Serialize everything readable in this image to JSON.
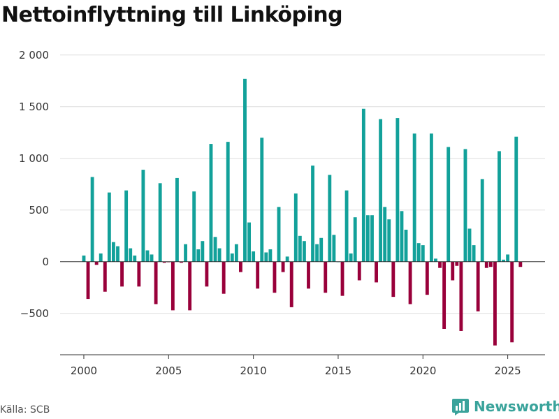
{
  "title": "Nettoinflyttning till Linköping",
  "source": "Källa: SCB",
  "brand": "Newsworthy",
  "colors": {
    "positive": "#12a19a",
    "negative": "#99003a",
    "grid": "#dddddd",
    "brand": "#3aa39b"
  },
  "chart_data": {
    "type": "bar",
    "title": "Nettoinflyttning till Linköping",
    "xlabel": "",
    "ylabel": "",
    "x_start": 2000.0,
    "x_step": 0.25,
    "bar_width_years": 0.2,
    "xlim": [
      1998.6,
      2027.2
    ],
    "ylim": [
      -900,
      2100
    ],
    "x_ticks": [
      2000,
      2005,
      2010,
      2015,
      2020,
      2025
    ],
    "x_tick_labels": [
      "2000",
      "2005",
      "2010",
      "2015",
      "2020",
      "2025"
    ],
    "y_ticks": [
      -500,
      0,
      500,
      1000,
      1500,
      2000
    ],
    "y_tick_labels": [
      "−500",
      "0",
      "500",
      "1 000",
      "1 500",
      "2 000"
    ],
    "values": [
      60,
      -360,
      820,
      -30,
      80,
      -290,
      670,
      190,
      150,
      -240,
      690,
      130,
      60,
      -240,
      890,
      110,
      70,
      -410,
      760,
      -10,
      -5,
      -470,
      810,
      -10,
      170,
      -470,
      680,
      120,
      200,
      -240,
      1140,
      240,
      130,
      -310,
      1160,
      80,
      170,
      -100,
      1770,
      380,
      100,
      -260,
      1200,
      90,
      120,
      -300,
      530,
      -100,
      50,
      -440,
      660,
      250,
      200,
      -260,
      930,
      170,
      230,
      -300,
      840,
      260,
      0,
      -330,
      690,
      80,
      430,
      -180,
      1480,
      450,
      450,
      -200,
      1380,
      530,
      410,
      -340,
      1390,
      490,
      310,
      -410,
      1240,
      180,
      160,
      -320,
      1240,
      30,
      -60,
      -650,
      1110,
      -180,
      -40,
      -670,
      1090,
      320,
      160,
      -480,
      800,
      -60,
      -50,
      -810,
      1070,
      20,
      70,
      -780,
      1210,
      -50
    ]
  }
}
